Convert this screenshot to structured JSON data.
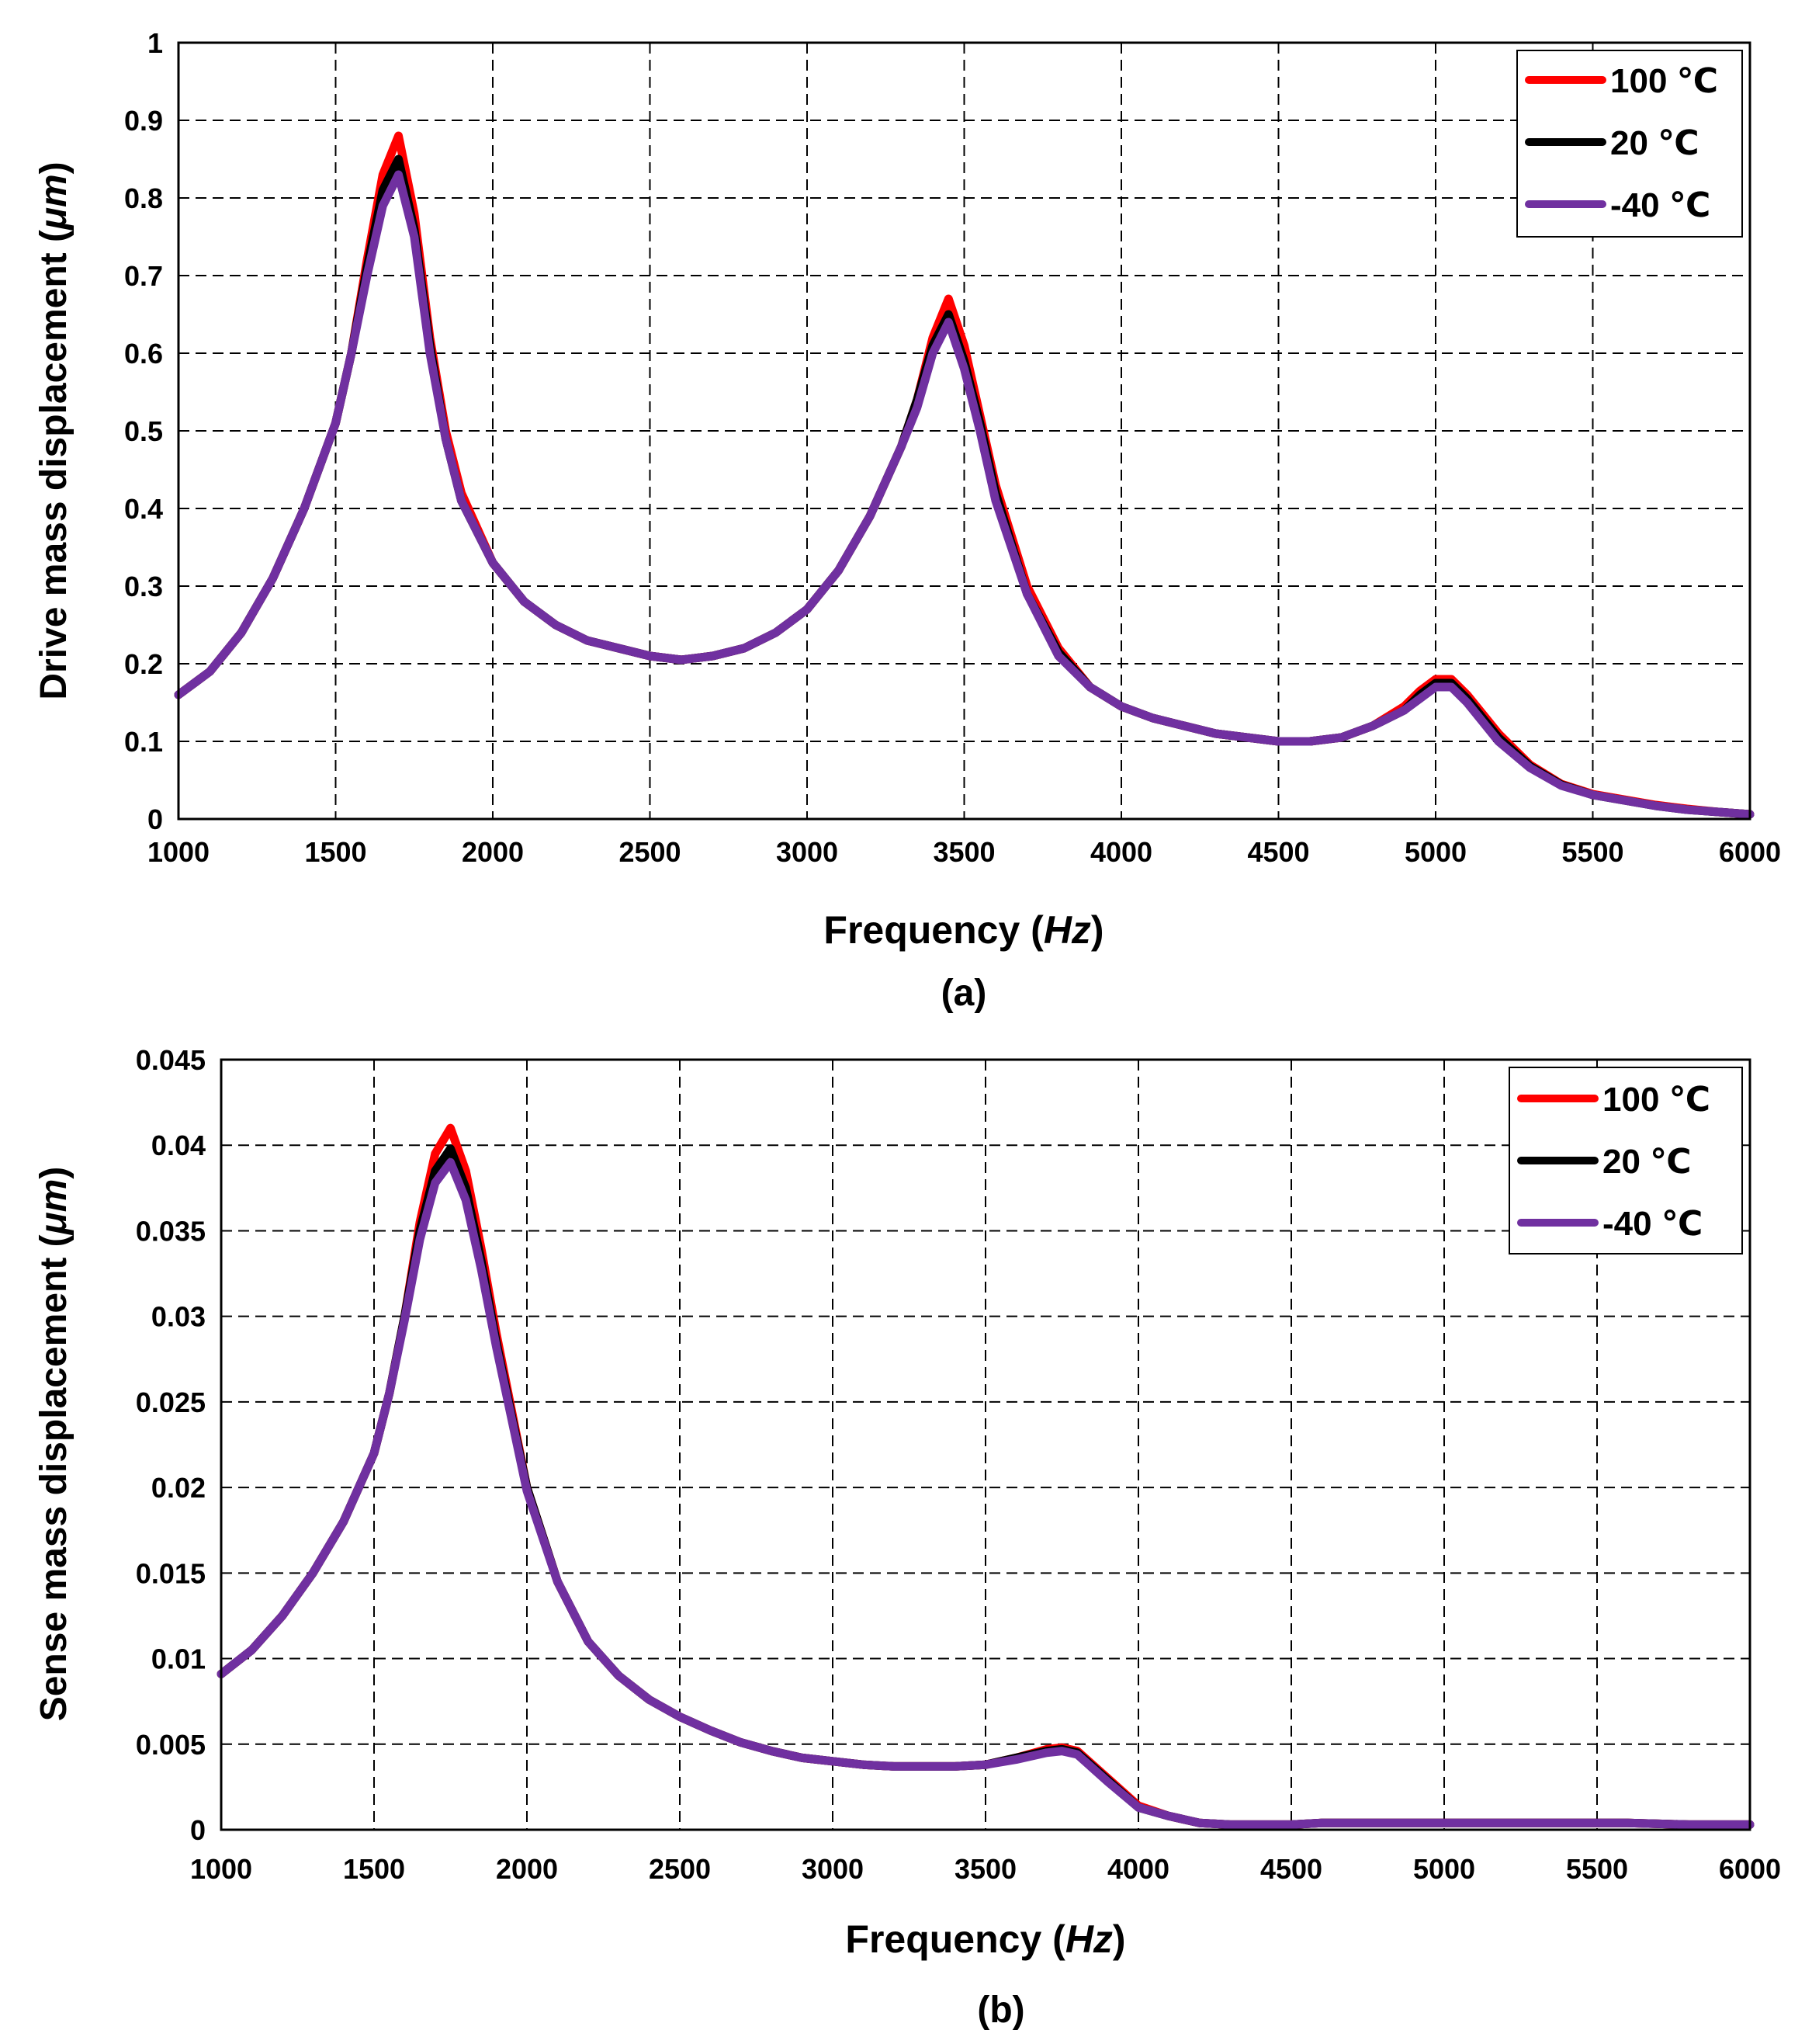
{
  "chart_data": [
    {
      "type": "line",
      "caption": "(a)",
      "xlabel": "Frequency",
      "xlabel_unit": "Hz",
      "ylabel": "Drive mass displacement",
      "ylabel_unit": "μm",
      "xlim": [
        1000,
        6000
      ],
      "ylim": [
        0,
        1
      ],
      "xticks": [
        "1000",
        "1500",
        "2000",
        "2500",
        "3000",
        "3500",
        "4000",
        "4500",
        "5000",
        "5500",
        "6000"
      ],
      "yticks": [
        "0",
        "0.1",
        "0.2",
        "0.3",
        "0.4",
        "0.5",
        "0.6",
        "0.7",
        "0.8",
        "0.9",
        "1"
      ],
      "xtick_values": [
        1000,
        1500,
        2000,
        2500,
        3000,
        3500,
        4000,
        4500,
        5000,
        5500,
        6000
      ],
      "ytick_values": [
        0,
        0.1,
        0.2,
        0.3,
        0.4,
        0.5,
        0.6,
        0.7,
        0.8,
        0.9,
        1
      ],
      "legend_position": "top-right",
      "x": [
        1000,
        1100,
        1200,
        1300,
        1400,
        1500,
        1550,
        1600,
        1650,
        1700,
        1750,
        1800,
        1850,
        1900,
        2000,
        2100,
        2200,
        2300,
        2400,
        2500,
        2600,
        2700,
        2800,
        2900,
        3000,
        3100,
        3200,
        3300,
        3350,
        3400,
        3450,
        3500,
        3550,
        3600,
        3700,
        3800,
        3900,
        4000,
        4100,
        4200,
        4300,
        4400,
        4500,
        4600,
        4700,
        4800,
        4900,
        4950,
        5000,
        5050,
        5100,
        5200,
        5300,
        5400,
        5500,
        5600,
        5700,
        5800,
        5900,
        6000
      ],
      "series": [
        {
          "name": "100 ℃",
          "color": "#ff0000",
          "values": [
            0.16,
            0.19,
            0.24,
            0.31,
            0.4,
            0.51,
            0.6,
            0.72,
            0.83,
            0.88,
            0.78,
            0.62,
            0.5,
            0.42,
            0.33,
            0.28,
            0.25,
            0.23,
            0.22,
            0.21,
            0.205,
            0.21,
            0.22,
            0.24,
            0.27,
            0.32,
            0.39,
            0.48,
            0.54,
            0.62,
            0.67,
            0.61,
            0.52,
            0.43,
            0.3,
            0.22,
            0.17,
            0.145,
            0.13,
            0.12,
            0.11,
            0.105,
            0.1,
            0.1,
            0.105,
            0.12,
            0.145,
            0.165,
            0.18,
            0.18,
            0.16,
            0.11,
            0.07,
            0.045,
            0.032,
            0.025,
            0.018,
            0.013,
            0.009,
            0.006
          ]
        },
        {
          "name": "20 ℃",
          "color": "#000000",
          "values": [
            0.16,
            0.19,
            0.24,
            0.31,
            0.4,
            0.51,
            0.6,
            0.71,
            0.81,
            0.85,
            0.76,
            0.61,
            0.49,
            0.41,
            0.33,
            0.28,
            0.25,
            0.23,
            0.22,
            0.21,
            0.205,
            0.21,
            0.22,
            0.24,
            0.27,
            0.32,
            0.39,
            0.48,
            0.54,
            0.61,
            0.65,
            0.59,
            0.51,
            0.42,
            0.29,
            0.215,
            0.17,
            0.145,
            0.13,
            0.12,
            0.11,
            0.105,
            0.1,
            0.1,
            0.105,
            0.12,
            0.14,
            0.16,
            0.175,
            0.175,
            0.155,
            0.105,
            0.068,
            0.044,
            0.031,
            0.024,
            0.017,
            0.012,
            0.009,
            0.006
          ]
        },
        {
          "name": "-40 ℃",
          "color": "#7030a0",
          "values": [
            0.16,
            0.19,
            0.24,
            0.31,
            0.4,
            0.51,
            0.6,
            0.7,
            0.79,
            0.83,
            0.75,
            0.6,
            0.49,
            0.41,
            0.33,
            0.28,
            0.25,
            0.23,
            0.22,
            0.21,
            0.205,
            0.21,
            0.22,
            0.24,
            0.27,
            0.32,
            0.39,
            0.48,
            0.53,
            0.6,
            0.64,
            0.58,
            0.5,
            0.41,
            0.29,
            0.21,
            0.17,
            0.145,
            0.13,
            0.12,
            0.11,
            0.105,
            0.1,
            0.1,
            0.105,
            0.12,
            0.14,
            0.155,
            0.17,
            0.17,
            0.15,
            0.1,
            0.066,
            0.043,
            0.031,
            0.024,
            0.017,
            0.012,
            0.009,
            0.006
          ]
        }
      ]
    },
    {
      "type": "line",
      "caption": "(b)",
      "xlabel": "Frequency",
      "xlabel_unit": "Hz",
      "ylabel": "Sense mass displacement",
      "ylabel_unit": "μm",
      "xlim": [
        1000,
        6000
      ],
      "ylim": [
        0,
        0.045
      ],
      "xticks": [
        "1000",
        "1500",
        "2000",
        "2500",
        "3000",
        "3500",
        "4000",
        "4500",
        "5000",
        "5500",
        "6000"
      ],
      "yticks": [
        "0",
        "0.005",
        "0.01",
        "0.015",
        "0.02",
        "0.025",
        "0.03",
        "0.035",
        "0.04",
        "0.045"
      ],
      "xtick_values": [
        1000,
        1500,
        2000,
        2500,
        3000,
        3500,
        4000,
        4500,
        5000,
        5500,
        6000
      ],
      "ytick_values": [
        0,
        0.005,
        0.01,
        0.015,
        0.02,
        0.025,
        0.03,
        0.035,
        0.04,
        0.045
      ],
      "legend_position": "top-right",
      "x": [
        1000,
        1100,
        1200,
        1300,
        1400,
        1500,
        1550,
        1600,
        1650,
        1700,
        1750,
        1800,
        1850,
        1900,
        1950,
        2000,
        2100,
        2200,
        2300,
        2400,
        2500,
        2600,
        2700,
        2800,
        2900,
        3000,
        3100,
        3200,
        3300,
        3400,
        3500,
        3600,
        3700,
        3750,
        3800,
        3900,
        4000,
        4100,
        4200,
        4300,
        4400,
        4500,
        4600,
        4800,
        5000,
        5200,
        5400,
        5600,
        5800,
        6000
      ],
      "series": [
        {
          "name": "100 ℃",
          "color": "#ff0000",
          "values": [
            0.0091,
            0.0105,
            0.0125,
            0.015,
            0.018,
            0.022,
            0.0255,
            0.03,
            0.0355,
            0.0395,
            0.041,
            0.0385,
            0.034,
            0.029,
            0.0245,
            0.02,
            0.0145,
            0.011,
            0.009,
            0.0076,
            0.0066,
            0.0058,
            0.0051,
            0.0046,
            0.0042,
            0.004,
            0.0038,
            0.0037,
            0.0037,
            0.0037,
            0.0038,
            0.0042,
            0.0047,
            0.0048,
            0.0046,
            0.003,
            0.0014,
            0.0008,
            0.0004,
            0.0003,
            0.0003,
            0.0003,
            0.0004,
            0.0004,
            0.0004,
            0.0004,
            0.0004,
            0.0004,
            0.0003,
            0.0003
          ]
        },
        {
          "name": "20 ℃",
          "color": "#000000",
          "values": [
            0.0091,
            0.0105,
            0.0125,
            0.015,
            0.018,
            0.022,
            0.0255,
            0.03,
            0.035,
            0.0385,
            0.0398,
            0.0375,
            0.0333,
            0.0285,
            0.0242,
            0.02,
            0.0145,
            0.011,
            0.009,
            0.0076,
            0.0066,
            0.0058,
            0.0051,
            0.0046,
            0.0042,
            0.004,
            0.0038,
            0.0037,
            0.0037,
            0.0037,
            0.0038,
            0.0042,
            0.0046,
            0.0047,
            0.0045,
            0.0029,
            0.0013,
            0.0008,
            0.0004,
            0.0003,
            0.0003,
            0.0003,
            0.0004,
            0.0004,
            0.0004,
            0.0004,
            0.0004,
            0.0004,
            0.0003,
            0.0003
          ]
        },
        {
          "name": "-40 ℃",
          "color": "#7030a0",
          "values": [
            0.0091,
            0.0105,
            0.0125,
            0.015,
            0.018,
            0.022,
            0.0255,
            0.0298,
            0.0345,
            0.0378,
            0.039,
            0.0368,
            0.0328,
            0.0282,
            0.024,
            0.0198,
            0.0145,
            0.011,
            0.009,
            0.0076,
            0.0066,
            0.0058,
            0.0051,
            0.0046,
            0.0042,
            0.004,
            0.0038,
            0.0037,
            0.0037,
            0.0037,
            0.0038,
            0.0041,
            0.0045,
            0.0046,
            0.0044,
            0.0028,
            0.0013,
            0.0008,
            0.0004,
            0.0003,
            0.0003,
            0.0003,
            0.0004,
            0.0004,
            0.0004,
            0.0004,
            0.0004,
            0.0004,
            0.0003,
            0.0003
          ]
        }
      ]
    }
  ]
}
